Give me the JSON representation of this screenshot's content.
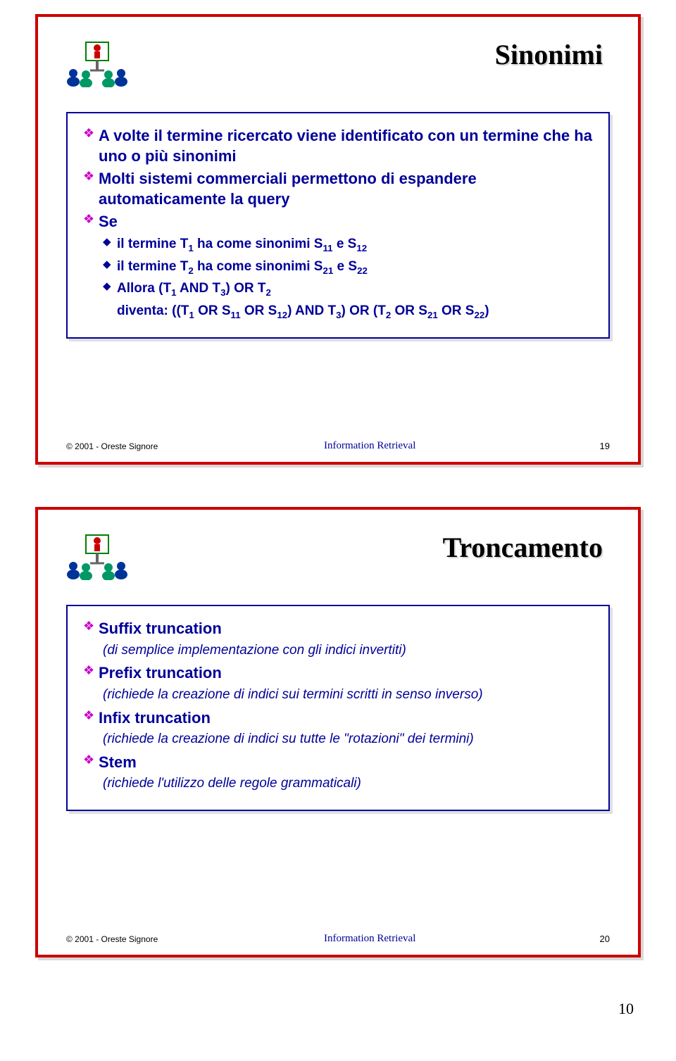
{
  "colors": {
    "slide_border": "#cc0000",
    "content_border": "#000099",
    "text_primary": "#000099",
    "bullet_l1": "#cc00cc",
    "bullet_l2": "#000099",
    "footer_title": "#000099",
    "background": "#ffffff"
  },
  "slide1": {
    "title": "Sinonimi",
    "bullets": [
      {
        "level": 1,
        "text": "A volte il termine ricercato viene identificato con un termine che ha uno o più sinonimi"
      },
      {
        "level": 1,
        "text": "Molti sistemi commerciali permettono di espandere automaticamente la query"
      },
      {
        "level": 1,
        "text": "Se"
      },
      {
        "level": 2,
        "html": "il termine T<sub>1</sub> ha come sinonimi S<sub>11</sub> e S<sub>12</sub>"
      },
      {
        "level": 2,
        "html": "il termine T<sub>2</sub> ha come sinonimi S<sub>21</sub> e S<sub>22</sub>"
      },
      {
        "level": 2,
        "html": "Allora (T<sub>1</sub> AND T<sub>3</sub>) OR T<sub>2</sub>"
      },
      {
        "level": "2plain",
        "html": "diventa: ((T<sub>1</sub> OR S<sub>11</sub> OR S<sub>12</sub>) AND T<sub>3</sub>) OR (T<sub>2</sub> OR S<sub>21</sub> OR S<sub>22</sub>)"
      }
    ],
    "footer": {
      "copyright": "© 2001 - Oreste Signore",
      "title": "Information Retrieval",
      "num": "19"
    }
  },
  "slide2": {
    "title": "Troncamento",
    "items": [
      {
        "head": "Suffix truncation",
        "sub": "(di semplice implementazione con gli indici invertiti)"
      },
      {
        "head": "Prefix truncation",
        "sub": "(richiede la creazione di indici sui termini scritti in senso inverso)"
      },
      {
        "head": "Infix truncation",
        "sub": "(richiede la creazione di indici su tutte le \"rotazioni\" dei termini)"
      },
      {
        "head": "Stem",
        "sub": "(richiede l'utilizzo delle regole grammaticali)"
      }
    ],
    "footer": {
      "copyright": "© 2001 - Oreste Signore",
      "title": "Information Retrieval",
      "num": "20"
    }
  },
  "page_number": "10"
}
